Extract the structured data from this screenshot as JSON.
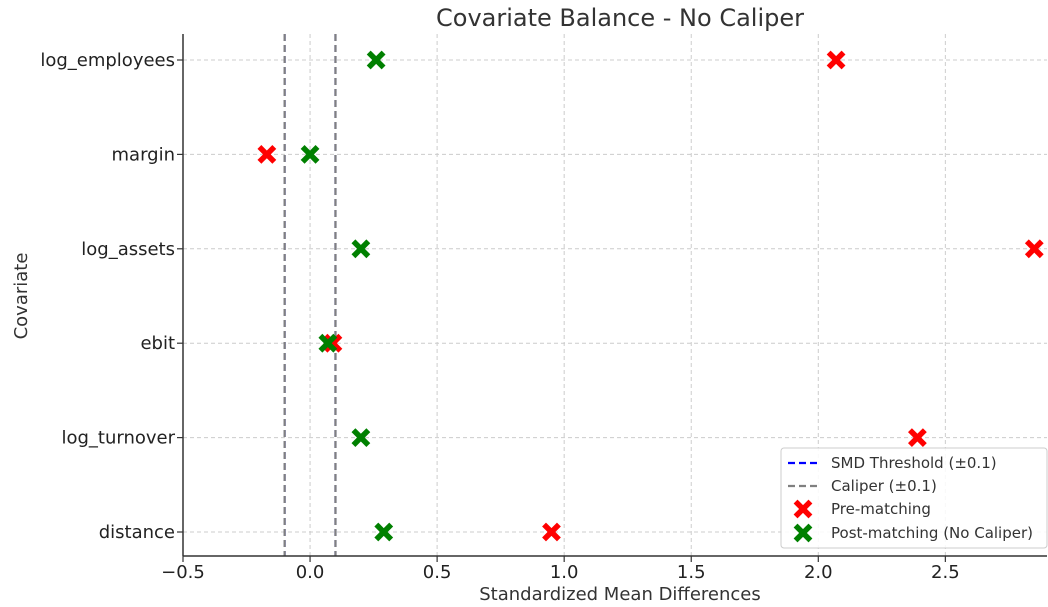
{
  "chart_data": {
    "type": "scatter",
    "title": "Covariate Balance - No Caliper",
    "xlabel": "Standardized Mean Differences",
    "ylabel": "Covariate",
    "xlim": [
      -0.5,
      2.9
    ],
    "x_ticks": [
      "−0.5",
      "0.0",
      "0.5",
      "1.0",
      "1.5",
      "2.0",
      "2.5"
    ],
    "x_tick_values": [
      -0.5,
      0.0,
      0.5,
      1.0,
      1.5,
      2.0,
      2.5
    ],
    "categories": [
      "log_employees",
      "margin",
      "log_assets",
      "ebit",
      "log_turnover",
      "distance"
    ],
    "grid": true,
    "legend_position": "bottom-right",
    "reference_lines": [
      {
        "name": "SMD Threshold (±0.1)",
        "values": [
          -0.1,
          0.1
        ],
        "color": "#0000ff",
        "style": "dashed"
      },
      {
        "name": "Caliper (±0.1)",
        "values": [
          -0.1,
          0.1
        ],
        "color": "#808080",
        "style": "dashed"
      }
    ],
    "series": [
      {
        "name": "Pre-matching",
        "color": "#ff0000",
        "marker": "x",
        "values": [
          2.07,
          -0.17,
          2.85,
          0.09,
          2.39,
          0.95
        ]
      },
      {
        "name": "Post-matching (No Caliper)",
        "color": "#008000",
        "marker": "x",
        "values": [
          0.26,
          0.0,
          0.2,
          0.07,
          0.2,
          0.29
        ]
      }
    ]
  }
}
